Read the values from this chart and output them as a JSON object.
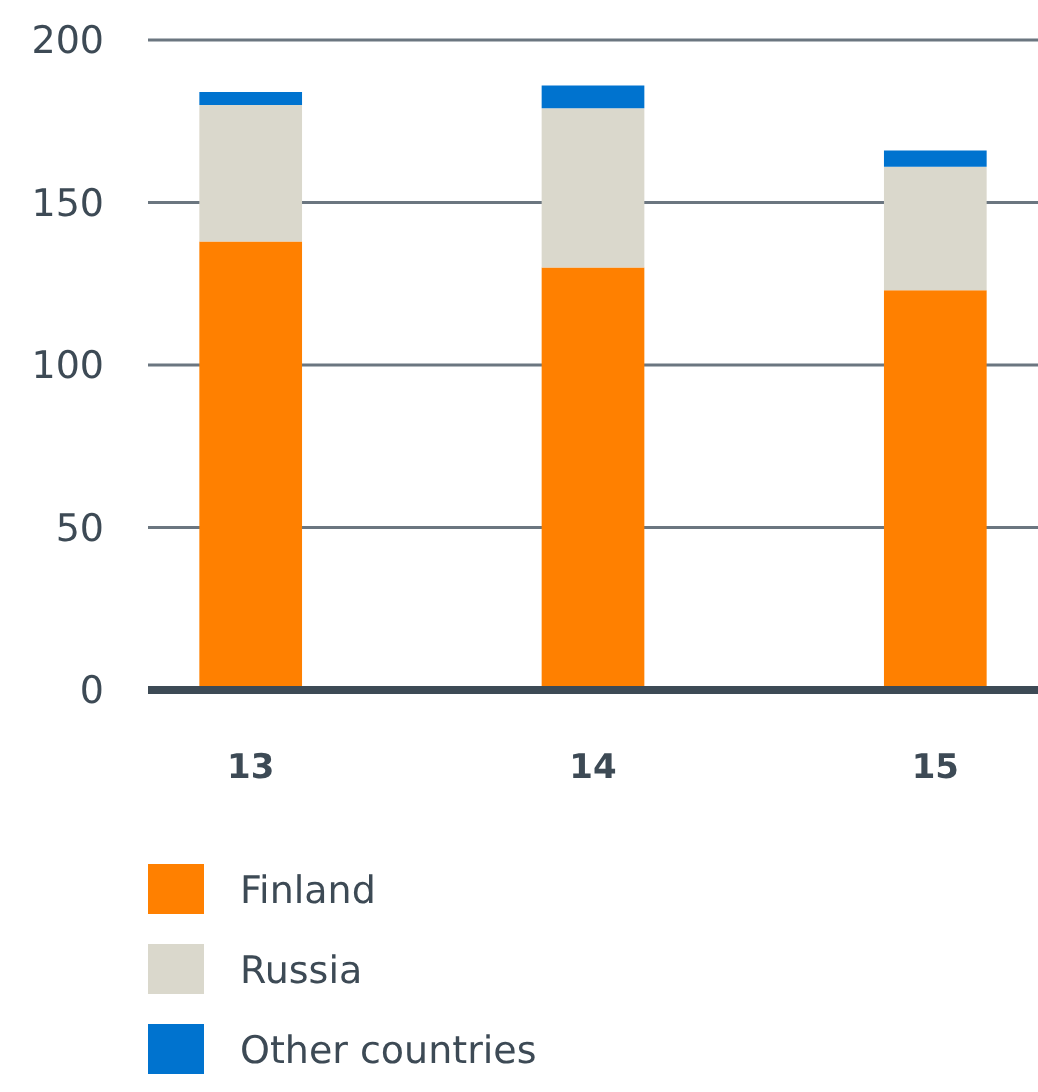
{
  "chart_data": {
    "type": "bar",
    "stacked": true,
    "categories": [
      "13",
      "14",
      "15"
    ],
    "series": [
      {
        "name": "Finland",
        "color": "#ff8000",
        "values": [
          138,
          130,
          123
        ]
      },
      {
        "name": "Russia",
        "color": "#dad8cc",
        "values": [
          42,
          49,
          38
        ]
      },
      {
        "name": "Other countries",
        "color": "#0073cf",
        "values": [
          4,
          7,
          5
        ]
      }
    ],
    "ylim": [
      0,
      200
    ],
    "yticks": [
      0,
      50,
      100,
      150,
      200
    ],
    "grid": "y",
    "legend": "bottom"
  }
}
